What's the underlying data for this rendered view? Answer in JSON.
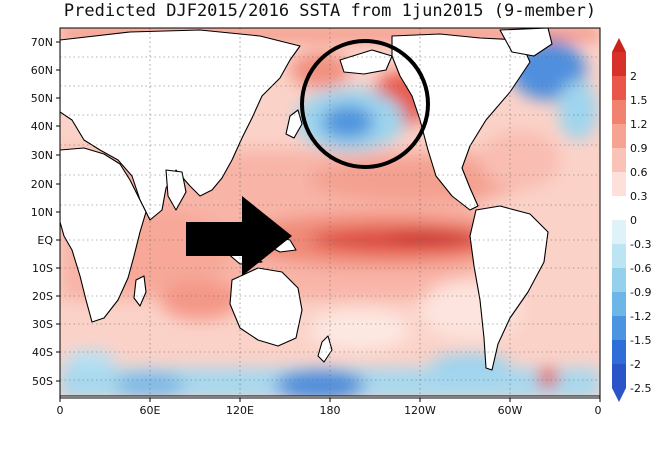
{
  "title": "Predicted DJF2015/2016 SSTA from 1jun2015 (9-member)",
  "map": {
    "lat_labels": [
      "70N",
      "60N",
      "50N",
      "40N",
      "30N",
      "20N",
      "10N",
      "EQ",
      "10S",
      "20S",
      "30S",
      "40S",
      "50S"
    ],
    "lon_labels": [
      "0",
      "60E",
      "120E",
      "180",
      "120W",
      "60W",
      "0"
    ]
  },
  "colorbar": {
    "labels": [
      "2",
      "1.5",
      "1.2",
      "0.9",
      "0.6",
      "0.3",
      "0",
      "-0.3",
      "-0.6",
      "-0.9",
      "-1.2",
      "-1.5",
      "-2",
      "-2.5"
    ],
    "colors": [
      "#d7312a",
      "#e9574a",
      "#f28270",
      "#f7a394",
      "#fbc3b8",
      "#fde0da",
      "#ffffff",
      "#dff2f8",
      "#bce4f2",
      "#95d1ec",
      "#6db6e6",
      "#4a94e0",
      "#2f6ed9",
      "#2b54c9"
    ]
  },
  "annotations": {
    "circle": "circle-highlight-north-pacific",
    "arrow": "arrow-pointing-equatorial-pacific"
  }
}
